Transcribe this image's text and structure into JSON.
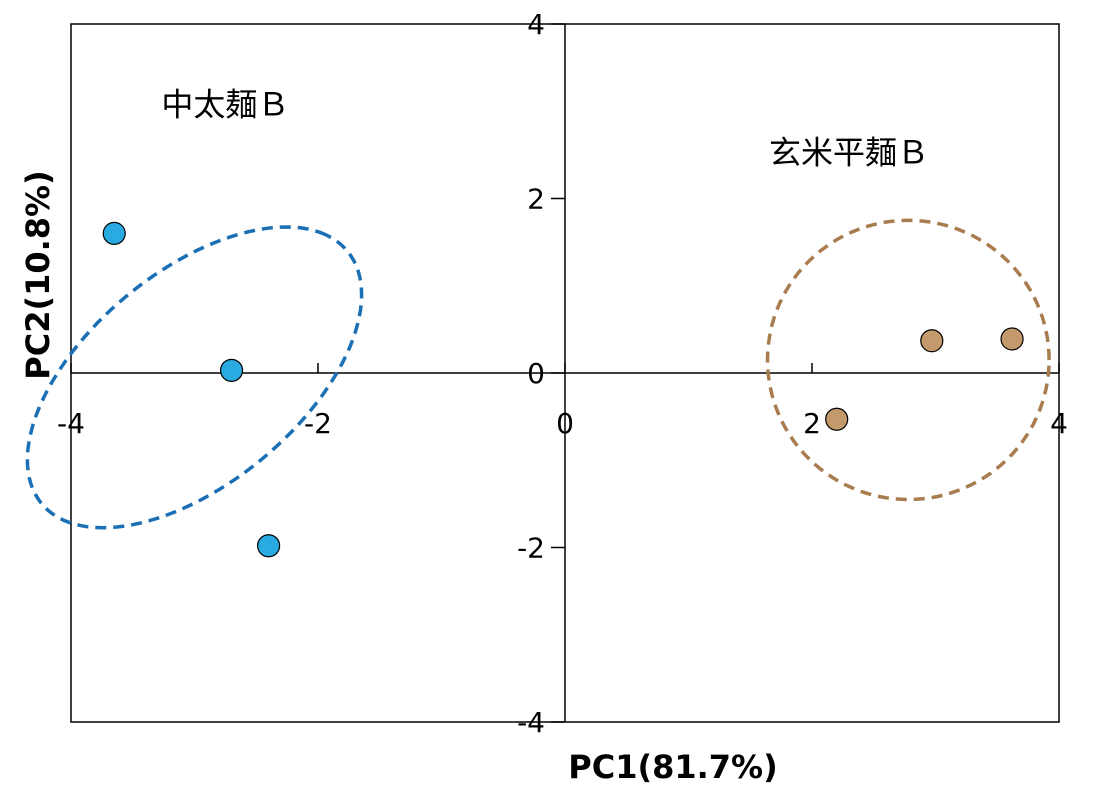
{
  "chart_data": {
    "type": "scatter",
    "title": "",
    "xlabel": "PC1(81.7%)",
    "ylabel": "PC2(10.8%)",
    "xlim": [
      -4,
      4
    ],
    "ylim": [
      -4,
      4
    ],
    "xticks": [
      {
        "value": -4,
        "label": "-4"
      },
      {
        "value": -2,
        "label": "-2"
      },
      {
        "value": 0,
        "label": "0"
      },
      {
        "value": 2,
        "label": "2"
      },
      {
        "value": 4,
        "label": "4"
      }
    ],
    "yticks": [
      {
        "value": 4,
        "label": "4"
      },
      {
        "value": 2,
        "label": "2"
      },
      {
        "value": 0,
        "label": "0"
      },
      {
        "value": -2,
        "label": "-2"
      },
      {
        "value": -4,
        "label": "-4"
      }
    ],
    "grid": false,
    "series": [
      {
        "name": "中太麺Ｂ",
        "color": "#29abe2",
        "ellipse_color": "#1a6fb5",
        "points": [
          {
            "x": -3.65,
            "y": 1.6
          },
          {
            "x": -2.7,
            "y": 0.03
          },
          {
            "x": -2.4,
            "y": -1.98
          }
        ],
        "ellipse": {
          "cx": -3.0,
          "cy": -0.05,
          "rx": 1.95,
          "ry": 1.0,
          "angle_deg": 57
        },
        "label_at": {
          "x": -2.75,
          "y": 2.95
        }
      },
      {
        "name": "玄米平麺Ｂ",
        "color": "#c49a6c",
        "ellipse_color": "#a87c4f",
        "points": [
          {
            "x": 2.2,
            "y": -0.53
          },
          {
            "x": 2.97,
            "y": 0.37
          },
          {
            "x": 3.62,
            "y": 0.39
          }
        ],
        "ellipse": {
          "cx": 2.78,
          "cy": 0.15,
          "rx": 1.14,
          "ry": 1.6,
          "angle_deg": 0
        },
        "label_at": {
          "x": 2.3,
          "y": 2.4
        }
      }
    ]
  }
}
